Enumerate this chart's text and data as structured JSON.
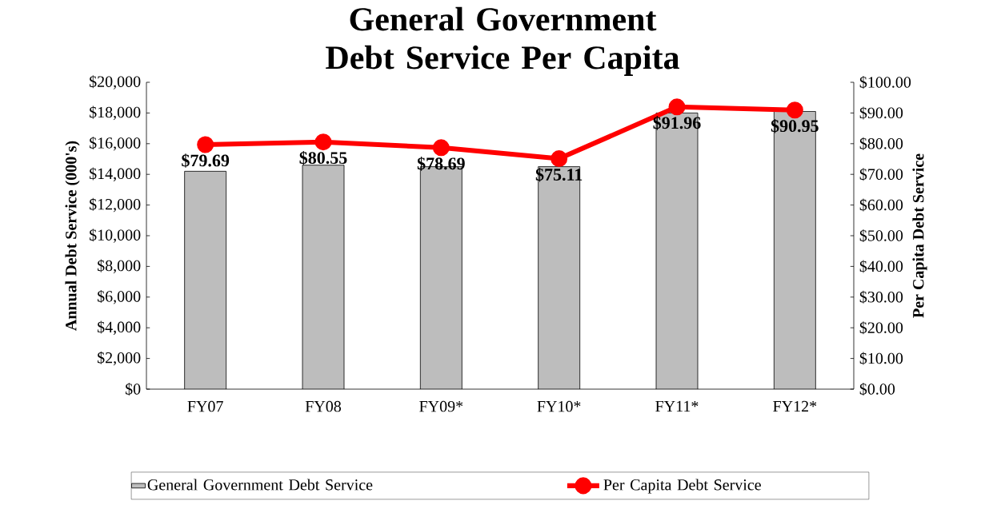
{
  "chart_data": {
    "type": "bar",
    "title": "General Government Debt Service Per Capita",
    "ylabel": "Annual Debt Service (000's)",
    "y2label": "Per Capita Debt Service",
    "categories": [
      "FY07",
      "FY08",
      "FY09*",
      "FY10*",
      "FY11*",
      "FY12*"
    ],
    "series": [
      {
        "name": "General Government Debt Service",
        "type": "bar",
        "color": "#bdbdbd",
        "values": [
          14200,
          14600,
          14500,
          14500,
          18000,
          18100
        ]
      },
      {
        "name": "Per Capita Debt Service",
        "type": "line",
        "axis": "y2",
        "color": "#ff0000",
        "marker": "circle",
        "values": [
          79.69,
          80.55,
          78.69,
          75.11,
          91.96,
          90.95
        ],
        "value_labels": [
          "$79.69",
          "$80.55",
          "$78.69",
          "$75.11",
          "$91.96",
          "$90.95"
        ]
      }
    ],
    "ylim": [
      0,
      20000
    ],
    "yticks": [
      {
        "value": 0,
        "label": "$0"
      },
      {
        "value": 2000,
        "label": "$2,000"
      },
      {
        "value": 4000,
        "label": "$4,000"
      },
      {
        "value": 6000,
        "label": "$6,000"
      },
      {
        "value": 8000,
        "label": "$8,000"
      },
      {
        "value": 10000,
        "label": "$10,000"
      },
      {
        "value": 12000,
        "label": "$12,000"
      },
      {
        "value": 14000,
        "label": "$14,000"
      },
      {
        "value": 16000,
        "label": "$16,000"
      },
      {
        "value": 18000,
        "label": "$18,000"
      },
      {
        "value": 20000,
        "label": "$20,000"
      }
    ],
    "y2lim": [
      0,
      100
    ],
    "y2ticks": [
      {
        "value": 0,
        "label": "$0.00"
      },
      {
        "value": 10,
        "label": "$10.00"
      },
      {
        "value": 20,
        "label": "$20.00"
      },
      {
        "value": 30,
        "label": "$30.00"
      },
      {
        "value": 40,
        "label": "$40.00"
      },
      {
        "value": 50,
        "label": "$50.00"
      },
      {
        "value": 60,
        "label": "$60.00"
      },
      {
        "value": 70,
        "label": "$70.00"
      },
      {
        "value": 80,
        "label": "$80.00"
      },
      {
        "value": 90,
        "label": "$90.00"
      },
      {
        "value": 100,
        "label": "$100.00"
      }
    ],
    "legend": "bottom",
    "grid": false
  }
}
